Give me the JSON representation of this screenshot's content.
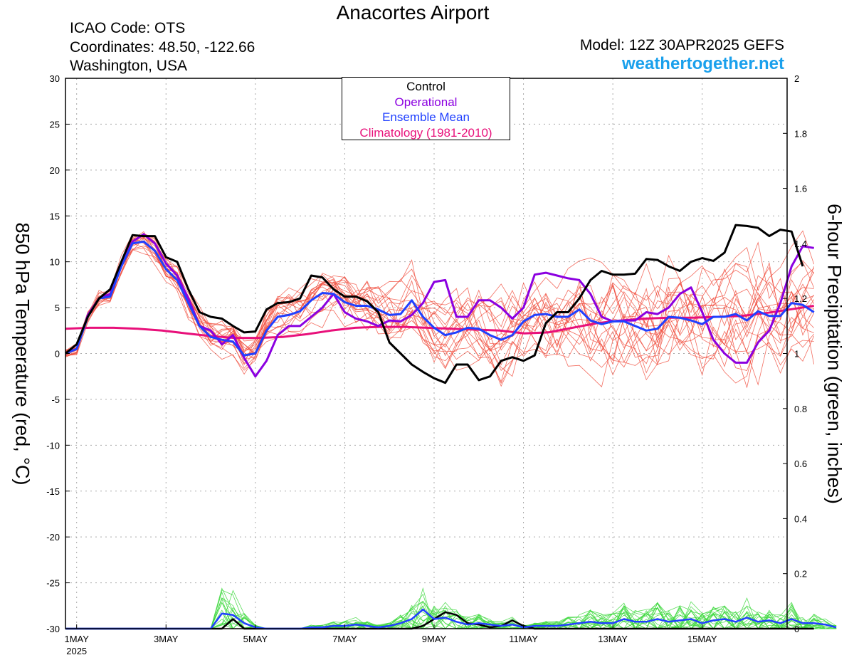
{
  "header": {
    "title": "Anacortes Airport",
    "icao": "ICAO Code: OTS",
    "coordinates": "Coordinates: 48.50, -122.66",
    "location": "Washington, USA",
    "model": "Model: 12Z 30APR2025 GEFS",
    "website": "weathertogether.net"
  },
  "legend": {
    "control": "Control",
    "operational": "Operational",
    "ensemble_mean": "Ensemble Mean",
    "climatology": "Climatology (1981-2010)"
  },
  "colors": {
    "control": "#000000",
    "operational": "#8b00e0",
    "ensemble_mean": "#2040ff",
    "climatology": "#e8107a",
    "members_temp": "#f04a3a",
    "members_precip": "#3ed83e",
    "website": "#1aa0ec"
  },
  "chart_data": {
    "type": "line",
    "xlabel": "",
    "ylabel_left": "850 hPa Temperature (red, °C)",
    "ylabel_right": "6-hour Precipitation (green, inches)",
    "ylim_left": [
      -30,
      30
    ],
    "ylim_right": [
      0,
      2
    ],
    "yticks_left": [
      30,
      25,
      20,
      15,
      10,
      5,
      0,
      -5,
      -10,
      -15,
      -20,
      -25,
      -30
    ],
    "yticks_right": [
      2,
      1.8,
      1.6,
      1.4,
      1.2,
      1,
      0.8,
      0.6,
      0.4,
      0.2,
      0
    ],
    "x_range_days": [
      -0.25,
      15.9
    ],
    "x_ticks": [
      {
        "day": 0,
        "label": "1MAY",
        "sublabel": "2025"
      },
      {
        "day": 2,
        "label": "3MAY"
      },
      {
        "day": 4,
        "label": "5MAY"
      },
      {
        "day": 6,
        "label": "7MAY"
      },
      {
        "day": 8,
        "label": "9MAY"
      },
      {
        "day": 10,
        "label": "11MAY"
      },
      {
        "day": 12,
        "label": "13MAY"
      },
      {
        "day": 14,
        "label": "15MAY"
      }
    ],
    "grid": true,
    "legend_position": "top-center",
    "x_start_day": -0.25,
    "x_step_days": 0.25,
    "series": [
      {
        "name": "Control",
        "axis": "left",
        "values": [
          0,
          1,
          4,
          6,
          7,
          10,
          12.9,
          12.8,
          12.8,
          10.5,
          10,
          7,
          4.5,
          4,
          3.8,
          3,
          2.3,
          2.4,
          4.8,
          5.5,
          5.6,
          6,
          8.5,
          8.3,
          7,
          6.2,
          6.2,
          5.7,
          4.5,
          1.2,
          0,
          -1.2,
          -2,
          -2.7,
          -3.2,
          -1.2,
          -1.2,
          -2.9,
          -2.5,
          -0.8,
          -0.4,
          -0.8,
          -0.2,
          3.3,
          4.5,
          4.5,
          6,
          8,
          9,
          8.6,
          8.6,
          8.7,
          10.3,
          10.2,
          9.5,
          9,
          10,
          10.4,
          10.1,
          11,
          14,
          13.9,
          13.7,
          12.8,
          13.5,
          13.3,
          9.5
        ]
      },
      {
        "name": "Operational",
        "axis": "left",
        "values": [
          0,
          0.5,
          4.2,
          6,
          6.5,
          9.5,
          12.2,
          13,
          12,
          9.8,
          8.5,
          6,
          3,
          2.5,
          1,
          2,
          -0.5,
          -2.5,
          -0.8,
          2,
          3,
          3,
          4,
          5,
          6.5,
          4.5,
          3.8,
          3.5,
          3,
          3.6,
          3.5,
          4.2,
          5.5,
          7.8,
          8,
          4,
          4,
          5.8,
          5.8,
          5,
          3.8,
          5,
          8.6,
          8.8,
          8.5,
          8.2,
          8,
          6.5,
          4,
          3.5,
          3.6,
          3.6,
          4.5,
          4.3,
          5,
          6.5,
          7.2,
          4.5,
          1.5,
          0,
          -1,
          -1,
          1.2,
          2.5,
          5.5,
          9.5,
          11.7,
          11.5
        ]
      },
      {
        "name": "Ensemble Mean",
        "axis": "left",
        "values": [
          0,
          0.5,
          4,
          6,
          6.2,
          9.5,
          12,
          12.2,
          11.2,
          9.2,
          8,
          5.5,
          3,
          1.8,
          1.5,
          1.3,
          -0.2,
          0,
          2.5,
          4,
          4.2,
          4.6,
          5.8,
          6.6,
          6.5,
          5.6,
          5.2,
          5.2,
          4.8,
          4.2,
          4.3,
          5.8,
          4,
          2.8,
          2,
          2.3,
          2.8,
          2.7,
          2,
          1.5,
          2,
          3.5,
          4.2,
          4.3,
          4,
          4,
          4.8,
          3.6,
          3.2,
          3.5,
          3.5,
          3,
          2.5,
          2.7,
          4,
          3.9,
          3.6,
          3.2,
          4,
          4,
          4.3,
          3.6,
          4.6,
          4.1,
          4.1,
          5.5,
          5.3,
          4.5
        ]
      },
      {
        "name": "Climatology (1981-2010)",
        "axis": "left",
        "values": [
          2.7,
          2.8,
          2.8,
          2.7,
          2.5,
          2.2,
          1.9,
          1.7,
          1.7,
          1.8,
          2.1,
          2.5,
          2.8,
          2.9,
          2.9,
          2.8,
          2.7,
          2.6,
          2.5,
          2.2,
          2.3,
          2.8,
          3.3,
          3.6,
          3.8,
          3.9,
          3.9,
          4,
          4.1,
          4.4,
          4.8,
          5.2
        ]
      },
      {
        "name": "Control",
        "axis": "right",
        "values": [
          0,
          0,
          0,
          0,
          0,
          0,
          0,
          0,
          0,
          0,
          0,
          0,
          0,
          0,
          0,
          0.035,
          0,
          0,
          0,
          0,
          0,
          0,
          0,
          0,
          0,
          0,
          0,
          0,
          0,
          0,
          0,
          0,
          0.01,
          0.035,
          0.06,
          0.05,
          0.02,
          0.015,
          0.005,
          0.01,
          0.03,
          0.01,
          0,
          0,
          0,
          0,
          0,
          0,
          0,
          0,
          0,
          0,
          0,
          0,
          0,
          0,
          0,
          0,
          0,
          0,
          0,
          0,
          0,
          0,
          0,
          0,
          0,
          0
        ]
      },
      {
        "name": "Ensemble Mean",
        "axis": "right",
        "values": [
          0,
          0,
          0,
          0,
          0,
          0,
          0,
          0,
          0,
          0,
          0,
          0,
          0,
          0,
          0.055,
          0.05,
          0.02,
          0.005,
          0,
          0,
          0,
          0,
          0.005,
          0.005,
          0.01,
          0.01,
          0.015,
          0.01,
          0.005,
          0.01,
          0.02,
          0.035,
          0.07,
          0.035,
          0.04,
          0.025,
          0.015,
          0.02,
          0.015,
          0.01,
          0.015,
          0.005,
          0.01,
          0.01,
          0.01,
          0.015,
          0.02,
          0.025,
          0.02,
          0.02,
          0.035,
          0.025,
          0.025,
          0.035,
          0.025,
          0.03,
          0.035,
          0.02,
          0.03,
          0.035,
          0.025,
          0.04,
          0.025,
          0.03,
          0.02,
          0.035,
          0.02,
          0.02,
          0.015,
          0.005
        ]
      }
    ]
  }
}
